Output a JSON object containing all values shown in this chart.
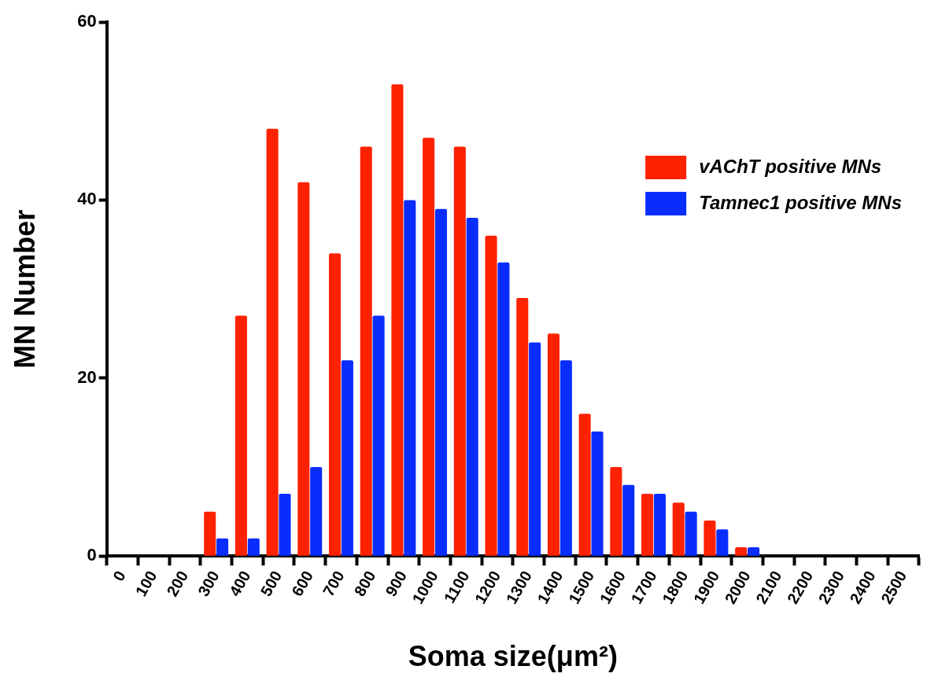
{
  "chart_data": {
    "type": "bar",
    "xlabel": "Soma size(μm²)",
    "ylabel": "MN Number",
    "categories": [
      "0",
      "100",
      "200",
      "300",
      "400",
      "500",
      "600",
      "700",
      "800",
      "900",
      "1000",
      "1100",
      "1200",
      "1300",
      "1400",
      "1500",
      "1600",
      "1700",
      "1800",
      "1900",
      "2000",
      "2100",
      "2200",
      "2300",
      "2400",
      "2500"
    ],
    "series": [
      {
        "name": "vAChT positive MNs",
        "color": "#ff2200",
        "values": [
          0,
          0,
          0,
          5,
          27,
          48,
          42,
          34,
          46,
          53,
          47,
          46,
          36,
          29,
          25,
          16,
          10,
          7,
          6,
          4,
          1,
          0,
          0,
          0,
          0,
          0
        ]
      },
      {
        "name": "Tamnec1 positive MNs",
        "color": "#0a2dff",
        "values": [
          0,
          0,
          0,
          2,
          2,
          7,
          10,
          22,
          27,
          40,
          39,
          38,
          33,
          24,
          22,
          14,
          8,
          7,
          5,
          3,
          1,
          0,
          0,
          0,
          0,
          0
        ]
      }
    ],
    "ylim": [
      0,
      60
    ],
    "yticks": [
      0,
      20,
      40,
      60
    ],
    "grid": false,
    "legend": "top right"
  }
}
